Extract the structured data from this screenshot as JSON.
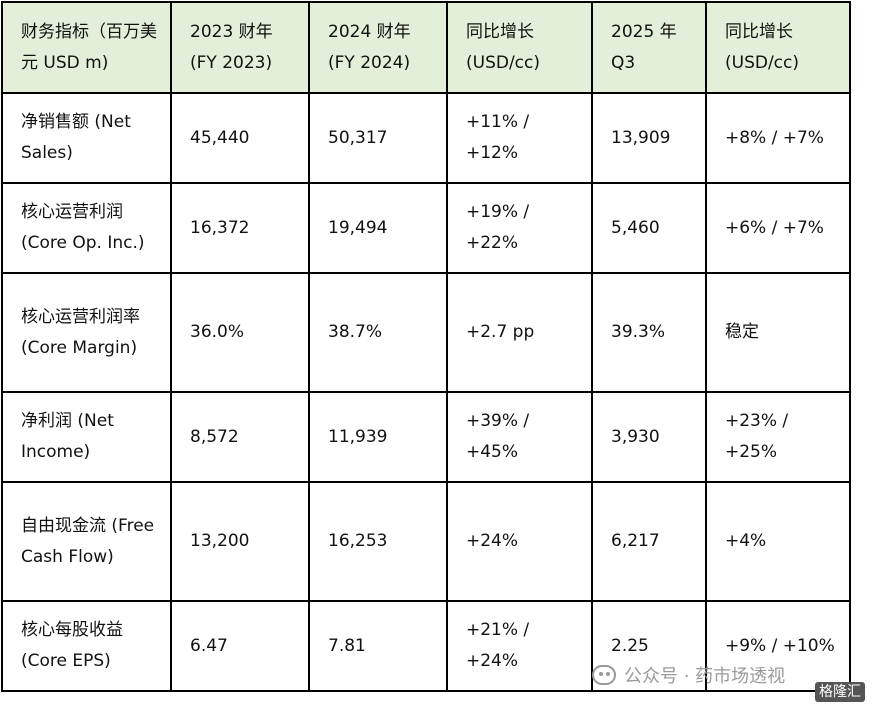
{
  "table": {
    "header": [
      "财务指标（百万美元 USD m)",
      "2023 财年 (FY 2023)",
      "2024 财年 (FY 2024)",
      "同比增长 (USD/cc)",
      "2025 年 Q3",
      "同比增长 (USD/cc)"
    ],
    "rows": [
      [
        "净销售额 (Net Sales)",
        "45,440",
        "50,317",
        "+11% / +12%",
        "13,909",
        "+8% / +7%"
      ],
      [
        "核心运营利润 (Core Op. Inc.)",
        "16,372",
        "19,494",
        "+19% / +22%",
        "5,460",
        "+6% / +7%"
      ],
      [
        "核心运营利润率 (Core Margin)",
        "36.0%",
        "38.7%",
        "+2.7 pp",
        "39.3%",
        "稳定"
      ],
      [
        "净利润 (Net Income)",
        "8,572",
        "11,939",
        "+39% / +45%",
        "3,930",
        "+23% / +25%"
      ],
      [
        "自由现金流 (Free Cash Flow)",
        "13,200",
        "16,253",
        "+24%",
        "6,217",
        "+4%"
      ],
      [
        "核心每股收益 (Core EPS)",
        "6.47",
        "7.81",
        "+21% / +24%",
        "2.25",
        "+9% / +10%"
      ]
    ]
  },
  "watermark": {
    "text": "公众号 · 药市场透视",
    "badge": "格隆汇",
    "icon": "wechat-icon"
  }
}
